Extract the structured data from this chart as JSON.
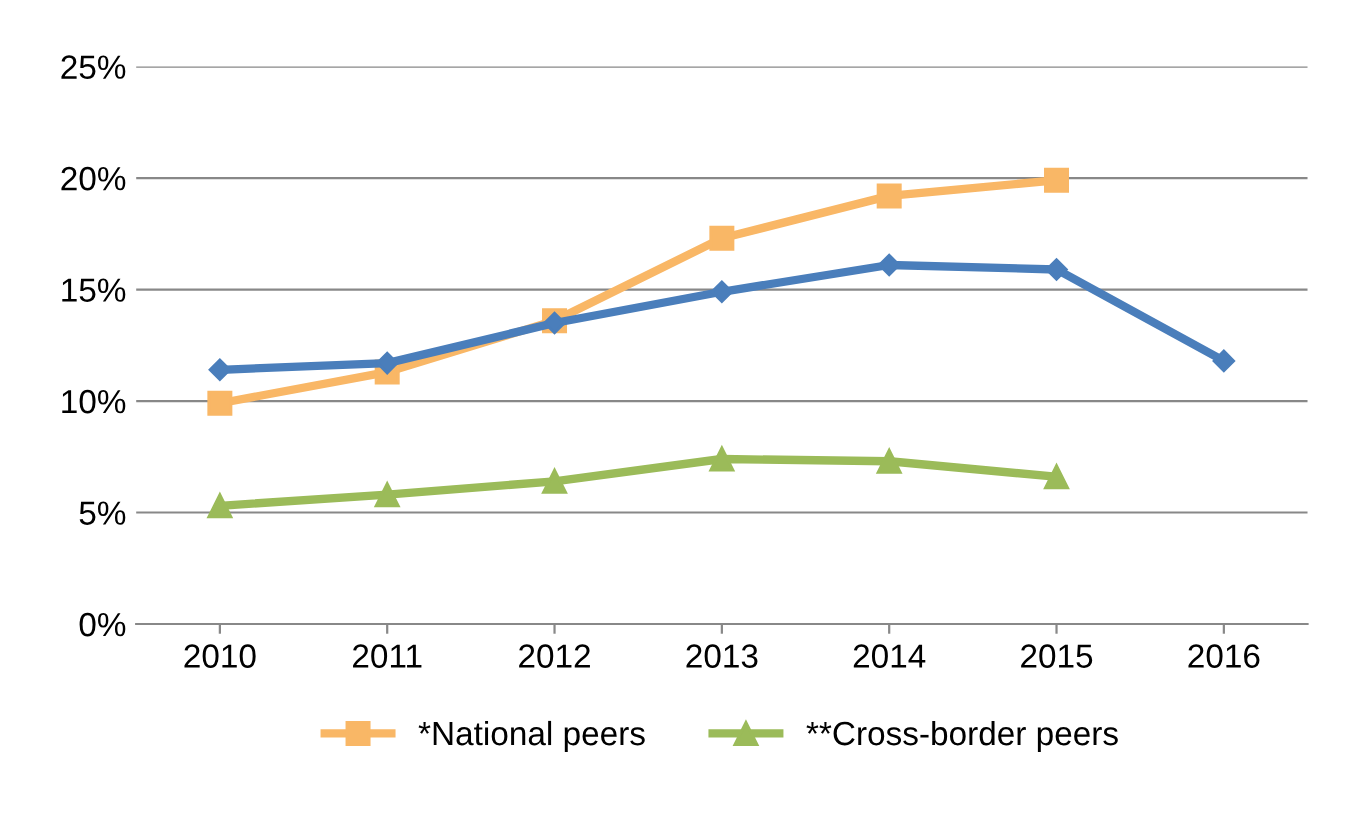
{
  "chart_data": {
    "type": "line",
    "categories": [
      "2010",
      "2011",
      "2012",
      "2013",
      "2014",
      "2015",
      "2016"
    ],
    "series": [
      {
        "color": "#4a7ebb",
        "marker": "diamond",
        "values": [
          11.4,
          11.7,
          13.5,
          14.9,
          16.1,
          15.9,
          11.8
        ]
      },
      {
        "name": "*National peers",
        "color": "#f9b766",
        "marker": "square",
        "values": [
          9.9,
          11.3,
          13.6,
          17.3,
          19.2,
          19.9,
          null
        ]
      },
      {
        "name": "**Cross-border peers",
        "color": "#9bbb59",
        "marker": "triangle",
        "values": [
          5.3,
          5.8,
          6.4,
          7.4,
          7.3,
          6.6,
          null
        ]
      }
    ],
    "ylim": [
      0,
      25
    ],
    "yticks": [
      {
        "value": 0,
        "label": "0%"
      },
      {
        "value": 5,
        "label": "5%"
      },
      {
        "value": 10,
        "label": "10%"
      },
      {
        "value": 15,
        "label": "15%"
      },
      {
        "value": 20,
        "label": "20%"
      },
      {
        "value": 25,
        "label": "25%"
      }
    ],
    "grid": "y",
    "legend": "bottom",
    "line_style": "solid"
  }
}
